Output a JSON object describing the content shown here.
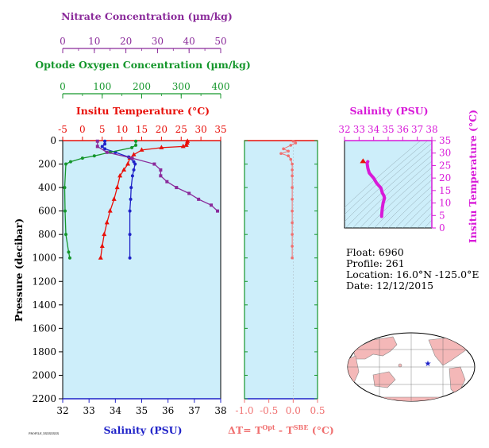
{
  "colors": {
    "temperature": "#e8100a",
    "salinity": "#1f22c8",
    "oxygen": "#14962b",
    "nitrate": "#8a2a9a",
    "dt": "#f07070",
    "ts_axis": "#d81ad8",
    "plot_bg": "#cdeefa"
  },
  "chart_data": [
    {
      "type": "line",
      "name": "main-profile",
      "ylabel": "Pressure (decibar)",
      "ylim": [
        2200,
        0
      ],
      "yticks": [
        0,
        200,
        400,
        600,
        800,
        1000,
        1200,
        1400,
        1600,
        1800,
        2000,
        2200
      ],
      "axes": {
        "nitrate": {
          "label": "Nitrate Concentration (µm/kg)",
          "lim": [
            0,
            50
          ],
          "ticks": [
            0,
            10,
            20,
            30,
            40,
            50
          ]
        },
        "oxygen": {
          "label": "Optode Oxygen Concentration (µm/kg)",
          "lim": [
            0,
            400
          ],
          "ticks": [
            0,
            100,
            200,
            300,
            400
          ]
        },
        "temperature": {
          "label": "Insitu Temperature (°C)",
          "lim": [
            -5,
            35
          ],
          "ticks": [
            -5,
            0,
            5,
            10,
            15,
            20,
            25,
            30,
            35
          ]
        },
        "salinity": {
          "label": "Salinity (PSU)",
          "lim": [
            32,
            38
          ],
          "ticks": [
            32,
            33,
            34,
            35,
            36,
            37,
            38
          ]
        }
      },
      "series": [
        {
          "axis": "temperature",
          "marker": "triangle",
          "points": [
            [
              26.6,
              5
            ],
            [
              26.5,
              20
            ],
            [
              26.3,
              40
            ],
            [
              25.5,
              50
            ],
            [
              20,
              60
            ],
            [
              15,
              80
            ],
            [
              13,
              120
            ],
            [
              12,
              150
            ],
            [
              11.5,
              200
            ],
            [
              10.5,
              250
            ],
            [
              9.5,
              300
            ],
            [
              8.8,
              400
            ],
            [
              8,
              500
            ],
            [
              7,
              600
            ],
            [
              6.2,
              700
            ],
            [
              5.5,
              800
            ],
            [
              5,
              900
            ],
            [
              4.6,
              1000
            ]
          ]
        },
        {
          "axis": "salinity",
          "marker": "circle",
          "points": [
            [
              33.6,
              5
            ],
            [
              33.6,
              30
            ],
            [
              33.5,
              50
            ],
            [
              33.6,
              70
            ],
            [
              34.0,
              100
            ],
            [
              34.5,
              140
            ],
            [
              34.7,
              180
            ],
            [
              34.75,
              200
            ],
            [
              34.7,
              250
            ],
            [
              34.65,
              300
            ],
            [
              34.6,
              400
            ],
            [
              34.58,
              500
            ],
            [
              34.55,
              600
            ],
            [
              34.55,
              800
            ],
            [
              34.55,
              1000
            ]
          ]
        },
        {
          "axis": "oxygen",
          "marker": "circle",
          "points": [
            [
              185,
              5
            ],
            [
              185,
              40
            ],
            [
              175,
              60
            ],
            [
              120,
              100
            ],
            [
              80,
              130
            ],
            [
              50,
              150
            ],
            [
              20,
              180
            ],
            [
              8,
              200
            ],
            [
              5,
              400
            ],
            [
              6,
              600
            ],
            [
              8,
              800
            ],
            [
              15,
              950
            ],
            [
              18,
              1000
            ]
          ]
        },
        {
          "axis": "nitrate",
          "marker": "square",
          "points": [
            [
              11,
              5
            ],
            [
              11,
              50
            ],
            [
              14,
              100
            ],
            [
              22,
              150
            ],
            [
              29,
              200
            ],
            [
              31,
              250
            ],
            [
              31,
              300
            ],
            [
              33,
              350
            ],
            [
              36,
              400
            ],
            [
              40,
              450
            ],
            [
              43,
              500
            ],
            [
              47,
              550
            ],
            [
              49,
              600
            ]
          ]
        }
      ]
    },
    {
      "type": "line",
      "name": "dt-profile",
      "xlabel": "ΔT= T",
      "xlabel_sup1": "Opt",
      "xlabel_mid": " - T",
      "xlabel_sup2": "SBE",
      "xlabel_end": " (°C)",
      "xlim": [
        -1.0,
        0.5
      ],
      "xticks": [
        "-1.0",
        "-0.5",
        "0.0",
        "0.5"
      ],
      "series": [
        {
          "points": [
            [
              0.0,
              5
            ],
            [
              0.05,
              20
            ],
            [
              -0.05,
              40
            ],
            [
              -0.2,
              70
            ],
            [
              -0.1,
              90
            ],
            [
              -0.25,
              110
            ],
            [
              -0.1,
              130
            ],
            [
              -0.05,
              160
            ],
            [
              -0.02,
              200
            ],
            [
              -0.02,
              250
            ],
            [
              -0.02,
              300
            ],
            [
              -0.02,
              400
            ],
            [
              -0.02,
              500
            ],
            [
              -0.02,
              600
            ],
            [
              -0.02,
              700
            ],
            [
              -0.02,
              800
            ],
            [
              -0.02,
              900
            ],
            [
              -0.02,
              1000
            ]
          ]
        }
      ]
    },
    {
      "type": "line",
      "name": "ts-diagram",
      "xlabel": "Salinity (PSU)",
      "ylabel": "Insitu Temperature (°C)",
      "xlim": [
        32,
        38
      ],
      "ylim": [
        0,
        35
      ],
      "xticks": [
        32,
        33,
        34,
        35,
        36,
        37,
        38
      ],
      "yticks": [
        0,
        5,
        10,
        15,
        20,
        25,
        30,
        35
      ],
      "series": [
        {
          "points": [
            [
              33.6,
              26.6
            ],
            [
              33.55,
              26
            ],
            [
              33.6,
              24
            ],
            [
              33.7,
              22
            ],
            [
              34.0,
              20
            ],
            [
              34.2,
              18
            ],
            [
              34.5,
              16
            ],
            [
              34.6,
              14
            ],
            [
              34.7,
              13
            ],
            [
              34.75,
              12
            ],
            [
              34.7,
              11
            ],
            [
              34.65,
              10
            ],
            [
              34.6,
              8
            ],
            [
              34.58,
              7
            ],
            [
              34.55,
              5
            ],
            [
              34.55,
              4.6
            ]
          ]
        }
      ]
    }
  ],
  "info": {
    "float": "Float:  6960",
    "profile": "Profile:  261",
    "location": "Location:  16.0°N  -125.0°E",
    "date": "Date:  12/12/2015"
  },
  "footer_tiny": "PROFILE_XXXXXXXX"
}
